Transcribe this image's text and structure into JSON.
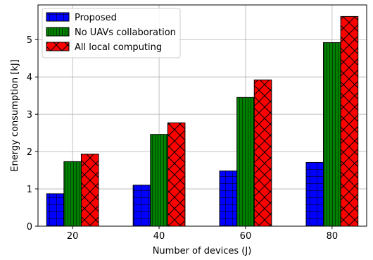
{
  "chart_data": {
    "type": "bar",
    "categories": [
      "20",
      "40",
      "60",
      "80"
    ],
    "series": [
      {
        "name": "Proposed",
        "values": [
          0.87,
          1.1,
          1.48,
          1.71
        ],
        "color": "#0000ff",
        "hatch": "grid"
      },
      {
        "name": "No UAVs collaboration",
        "values": [
          1.73,
          2.46,
          3.45,
          4.92
        ],
        "color": "#008000",
        "hatch": "vertical"
      },
      {
        "name": "All local computing",
        "values": [
          1.93,
          2.77,
          3.92,
          5.62
        ],
        "color": "#ff0000",
        "hatch": "cross"
      }
    ],
    "xlabel": "Number of devices (J)",
    "ylabel": "Energy consumption [kJ]",
    "ylim": [
      0,
      5.93
    ],
    "yticks": [
      0,
      1,
      2,
      3,
      4,
      5
    ],
    "grid": true,
    "legend_position": "top-left"
  }
}
